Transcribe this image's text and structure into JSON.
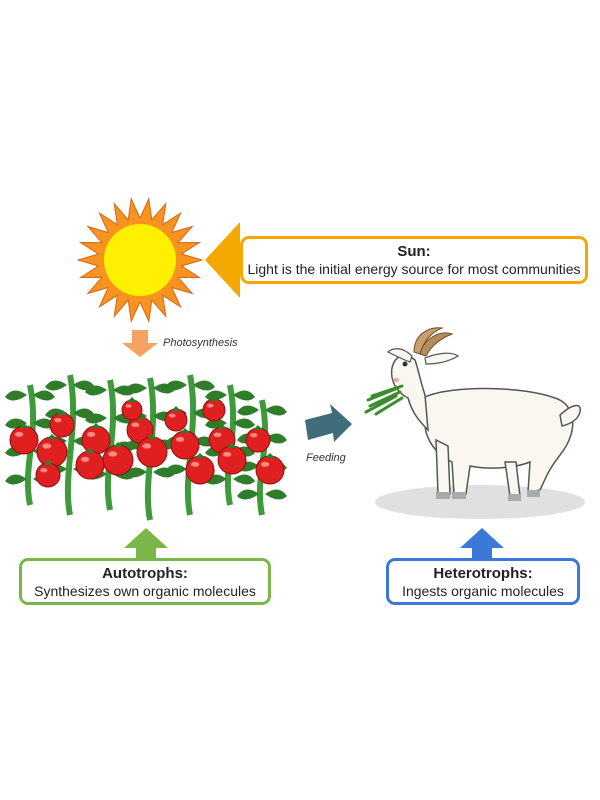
{
  "colors": {
    "sun": "#f5a800",
    "autotrophs": "#7ab648",
    "heterotrophs": "#3b78d8",
    "photosynthesis_arrow": "#f4a460",
    "feeding_arrow": "#3f6e7a"
  },
  "sun_box": {
    "title": "Sun:",
    "text": "Light is the initial energy source for most communities"
  },
  "autotrophs_box": {
    "title": "Autotrophs:",
    "text": "Synthesizes own organic molecules"
  },
  "heterotrophs_box": {
    "title": "Heterotrophs:",
    "text": "Ingests organic molecules"
  },
  "labels": {
    "photosynthesis": "Photosynthesis",
    "feeding": "Feeding"
  },
  "icons": [
    "sun-icon",
    "tomato-plants-icon",
    "goat-icon"
  ]
}
